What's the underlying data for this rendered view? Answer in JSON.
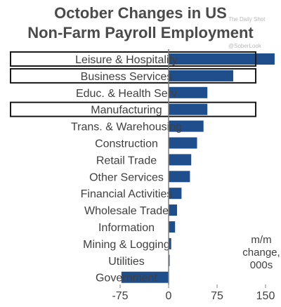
{
  "title_lines": [
    "October Changes in US",
    "Non-Farm Payroll Employment"
  ],
  "watermarks": {
    "top": "The Daily Shot",
    "handle": "@SoberLook"
  },
  "unit_lines": [
    "m/m",
    "change,",
    "000s"
  ],
  "colors": {
    "bar": "#1f4e8c",
    "highlight_box": "#1a1a1a",
    "axis": "#808080",
    "text": "#404040"
  },
  "chart_data": {
    "type": "bar",
    "orientation": "horizontal",
    "title": "October Changes in US Non-Farm Payroll Employment",
    "xlabel": "m/m change, 000s",
    "ylabel": "",
    "xlim": [
      -90,
      225
    ],
    "xticks": [
      -75,
      0,
      75,
      150,
      225
    ],
    "categories": [
      "Leisure & Hospitality",
      "Business Services",
      "Educ. & Health Serv",
      "Manufacturing",
      "Trans. & Warehousing",
      "Construction",
      "Retail Trade",
      "Other Services",
      "Financial Activities",
      "Wholesale Trade",
      "Information",
      "Mining & Logging",
      "Utilities",
      "Government"
    ],
    "values": [
      164,
      100,
      60,
      60,
      54,
      44,
      35,
      33,
      20,
      13,
      10,
      4,
      1,
      -73
    ],
    "highlighted": [
      "Leisure & Hospitality",
      "Business Services",
      "Manufacturing"
    ],
    "grid": false,
    "legend": "none"
  }
}
